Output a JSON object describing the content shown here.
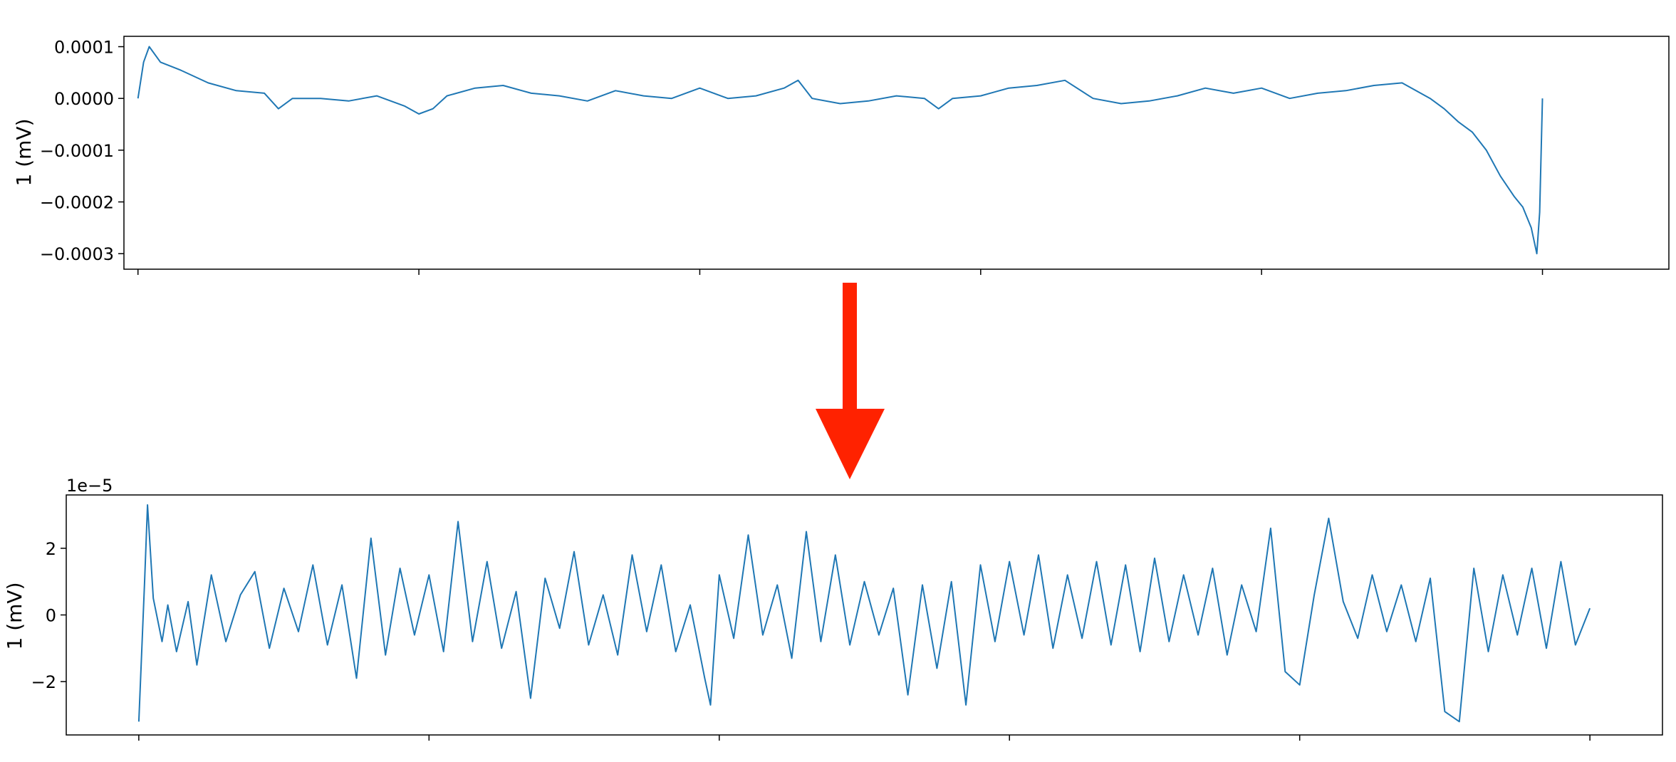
{
  "colors": {
    "trace": "#1f77b4",
    "arrow": "#ff2200",
    "frame": "#000000"
  },
  "arrow": {
    "icon": "down-arrow-icon",
    "color": "#ff2200"
  },
  "chart_data": [
    {
      "type": "line",
      "ylabel": "1 (mV)",
      "ylim": [
        -0.00033,
        0.00012
      ],
      "yticks": [
        0.0001,
        0.0,
        -0.0001,
        -0.0002,
        -0.0003
      ],
      "ytick_labels": [
        "0.0001",
        "0.0000",
        "−0.0001",
        "−0.0002",
        "−0.0003"
      ],
      "xlim": [
        -0.05,
        5.45
      ],
      "xticks": [
        0,
        1,
        2,
        3,
        4,
        5
      ],
      "xtick_labels": [],
      "grid": false,
      "series": [
        {
          "color": "#1f77b4",
          "x": [
            0,
            0.02,
            0.04,
            0.08,
            0.15,
            0.25,
            0.35,
            0.45,
            0.5,
            0.55,
            0.65,
            0.75,
            0.85,
            0.95,
            1.0,
            1.05,
            1.1,
            1.2,
            1.3,
            1.4,
            1.5,
            1.6,
            1.7,
            1.8,
            1.9,
            2.0,
            2.1,
            2.2,
            2.3,
            2.35,
            2.4,
            2.5,
            2.6,
            2.7,
            2.8,
            2.85,
            2.9,
            3.0,
            3.1,
            3.2,
            3.3,
            3.4,
            3.5,
            3.6,
            3.7,
            3.8,
            3.9,
            4.0,
            4.1,
            4.2,
            4.3,
            4.4,
            4.5,
            4.6,
            4.65,
            4.7,
            4.75,
            4.8,
            4.85,
            4.9,
            4.93,
            4.96,
            4.98,
            4.99,
            5.0
          ],
          "y": [
            0,
            7e-05,
            0.0001,
            7e-05,
            5.5e-05,
            3e-05,
            1.5e-05,
            1e-05,
            -2e-05,
            0,
            0,
            -5e-06,
            5e-06,
            -1.5e-05,
            -3e-05,
            -2e-05,
            5e-06,
            2e-05,
            2.5e-05,
            1e-05,
            5e-06,
            -5e-06,
            1.5e-05,
            5e-06,
            0,
            2e-05,
            0,
            5e-06,
            2e-05,
            3.5e-05,
            0,
            -1e-05,
            -5e-06,
            5e-06,
            0,
            -2e-05,
            0,
            5e-06,
            2e-05,
            2.5e-05,
            3.5e-05,
            0,
            -1e-05,
            -5e-06,
            5e-06,
            2e-05,
            1e-05,
            2e-05,
            0,
            1e-05,
            1.5e-05,
            2.5e-05,
            3e-05,
            0,
            -2e-05,
            -4.5e-05,
            -6.5e-05,
            -0.0001,
            -0.00015,
            -0.00019,
            -0.00021,
            -0.00025,
            -0.0003,
            -0.00022,
            0
          ]
        }
      ]
    },
    {
      "type": "line",
      "ylabel": "1 (mV)",
      "offset_text": "1e−5",
      "ylim": [
        -3.6,
        3.6
      ],
      "yticks": [
        2,
        0,
        -2
      ],
      "ytick_labels": [
        "2",
        "0",
        "−2"
      ],
      "xlim": [
        -0.25,
        5.25
      ],
      "xticks": [
        0,
        1,
        2,
        3,
        4,
        5
      ],
      "xtick_labels": [],
      "grid": false,
      "series": [
        {
          "color": "#1f77b4",
          "x": [
            0,
            0.02,
            0.03,
            0.05,
            0.08,
            0.1,
            0.13,
            0.17,
            0.2,
            0.25,
            0.3,
            0.35,
            0.4,
            0.45,
            0.5,
            0.55,
            0.6,
            0.65,
            0.7,
            0.75,
            0.8,
            0.85,
            0.9,
            0.95,
            1.0,
            1.05,
            1.1,
            1.15,
            1.2,
            1.25,
            1.3,
            1.35,
            1.4,
            1.45,
            1.5,
            1.55,
            1.6,
            1.65,
            1.7,
            1.75,
            1.8,
            1.85,
            1.9,
            1.95,
            1.97,
            2.0,
            2.05,
            2.1,
            2.15,
            2.2,
            2.25,
            2.3,
            2.35,
            2.4,
            2.45,
            2.5,
            2.55,
            2.6,
            2.65,
            2.7,
            2.75,
            2.8,
            2.85,
            2.9,
            2.95,
            3.0,
            3.05,
            3.1,
            3.15,
            3.2,
            3.25,
            3.3,
            3.35,
            3.4,
            3.45,
            3.5,
            3.55,
            3.6,
            3.65,
            3.7,
            3.75,
            3.8,
            3.85,
            3.9,
            3.95,
            4.0,
            4.05,
            4.1,
            4.15,
            4.2,
            4.25,
            4.3,
            4.35,
            4.4,
            4.45,
            4.5,
            4.55,
            4.6,
            4.65,
            4.7,
            4.75,
            4.8,
            4.85,
            4.9,
            4.95,
            5.0
          ],
          "y": [
            -3.2,
            1.0,
            3.3,
            0.5,
            -0.8,
            0.3,
            -1.1,
            0.4,
            -1.5,
            1.2,
            -0.8,
            0.6,
            1.3,
            -1.0,
            0.8,
            -0.5,
            1.5,
            -0.9,
            0.9,
            -1.9,
            2.3,
            -1.2,
            1.4,
            -0.6,
            1.2,
            -1.1,
            2.8,
            -0.8,
            1.6,
            -1.0,
            0.7,
            -2.5,
            1.1,
            -0.4,
            1.9,
            -0.9,
            0.6,
            -1.2,
            1.8,
            -0.5,
            1.5,
            -1.1,
            0.3,
            -1.9,
            -2.7,
            1.2,
            -0.7,
            2.4,
            -0.6,
            0.9,
            -1.3,
            2.5,
            -0.8,
            1.8,
            -0.9,
            1.0,
            -0.6,
            0.8,
            -2.4,
            0.9,
            -1.6,
            1.0,
            -2.7,
            1.5,
            -0.8,
            1.6,
            -0.6,
            1.8,
            -1.0,
            1.2,
            -0.7,
            1.6,
            -0.9,
            1.5,
            -1.1,
            1.7,
            -0.8,
            1.2,
            -0.6,
            1.4,
            -1.2,
            0.9,
            -0.5,
            2.6,
            -1.7,
            -2.1,
            0.6,
            2.9,
            0.4,
            -0.7,
            1.2,
            -0.5,
            0.9,
            -0.8,
            1.1,
            -2.9,
            -3.2,
            1.4,
            -1.1,
            1.2,
            -0.6,
            1.4,
            -1.0,
            1.6,
            -0.9,
            0.2
          ]
        }
      ]
    }
  ]
}
